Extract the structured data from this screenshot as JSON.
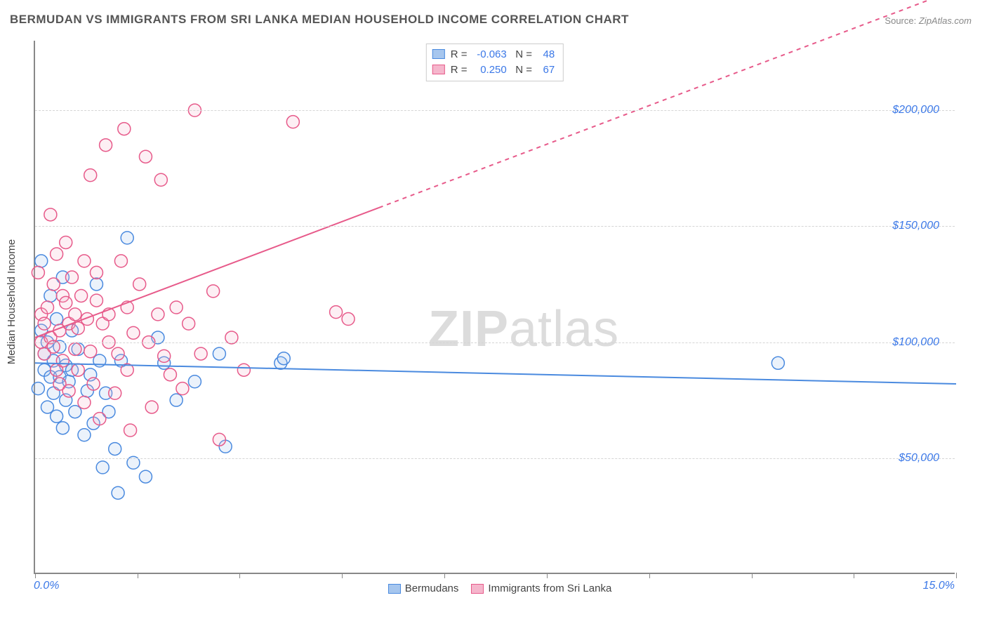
{
  "title": "BERMUDAN VS IMMIGRANTS FROM SRI LANKA MEDIAN HOUSEHOLD INCOME CORRELATION CHART",
  "source_label": "Source:",
  "source_value": "ZipAtlas.com",
  "y_axis_label": "Median Household Income",
  "watermark_bold": "ZIP",
  "watermark_rest": "atlas",
  "chart": {
    "type": "scatter",
    "xlim": [
      0,
      15
    ],
    "ylim": [
      0,
      230000
    ],
    "x_tick_labels": [
      "0.0%",
      "15.0%"
    ],
    "x_ticks_minor": [
      0,
      1.67,
      3.33,
      5,
      6.67,
      8.33,
      10,
      11.67,
      13.33,
      15
    ],
    "y_ticks": [
      {
        "value": 50000,
        "label": "$50,000"
      },
      {
        "value": 100000,
        "label": "$100,000"
      },
      {
        "value": 150000,
        "label": "$150,000"
      },
      {
        "value": 200000,
        "label": "$200,000"
      }
    ],
    "grid_color": "#d5d5d5",
    "background": "#ffffff",
    "axis_label_color": "#3b78e7",
    "marker_radius": 9,
    "marker_stroke_width": 1.5,
    "marker_fill_opacity": 0.22,
    "trendline_width": 2,
    "series": [
      {
        "name": "Bermudans",
        "color_stroke": "#4a8adf",
        "color_fill": "#a6c6ee",
        "trend": {
          "x0": 0,
          "y0": 91000,
          "x1": 15,
          "y1": 82000,
          "dash_from_x": null
        },
        "stats": {
          "R": "-0.063",
          "N": "48"
        },
        "points": [
          [
            0.05,
            80000
          ],
          [
            0.1,
            105000
          ],
          [
            0.1,
            135000
          ],
          [
            0.15,
            95000
          ],
          [
            0.15,
            88000
          ],
          [
            0.2,
            72000
          ],
          [
            0.2,
            100000
          ],
          [
            0.25,
            120000
          ],
          [
            0.25,
            85000
          ],
          [
            0.3,
            92000
          ],
          [
            0.3,
            78000
          ],
          [
            0.35,
            68000
          ],
          [
            0.35,
            110000
          ],
          [
            0.4,
            85000
          ],
          [
            0.4,
            98000
          ],
          [
            0.45,
            63000
          ],
          [
            0.45,
            128000
          ],
          [
            0.5,
            90000
          ],
          [
            0.5,
            75000
          ],
          [
            0.55,
            83000
          ],
          [
            0.6,
            105000
          ],
          [
            0.6,
            88000
          ],
          [
            0.65,
            70000
          ],
          [
            0.7,
            97000
          ],
          [
            0.8,
            60000
          ],
          [
            0.85,
            79000
          ],
          [
            0.9,
            86000
          ],
          [
            0.95,
            65000
          ],
          [
            1.0,
            125000
          ],
          [
            1.05,
            92000
          ],
          [
            1.1,
            46000
          ],
          [
            1.15,
            78000
          ],
          [
            1.2,
            70000
          ],
          [
            1.3,
            54000
          ],
          [
            1.35,
            35000
          ],
          [
            1.4,
            92000
          ],
          [
            1.5,
            145000
          ],
          [
            1.6,
            48000
          ],
          [
            1.8,
            42000
          ],
          [
            2.0,
            102000
          ],
          [
            2.1,
            91000
          ],
          [
            2.3,
            75000
          ],
          [
            2.6,
            83000
          ],
          [
            3.0,
            95000
          ],
          [
            3.1,
            55000
          ],
          [
            4.0,
            91000
          ],
          [
            4.05,
            93000
          ],
          [
            12.1,
            91000
          ]
        ]
      },
      {
        "name": "Immigrants from Sri Lanka",
        "color_stroke": "#e75a8a",
        "color_fill": "#f5b6cc",
        "trend": {
          "x0": 0,
          "y0": 102000,
          "x1": 15,
          "y1": 252000,
          "dash_from_x": 5.6
        },
        "stats": {
          "R": "0.250",
          "N": "67"
        },
        "points": [
          [
            0.05,
            130000
          ],
          [
            0.1,
            100000
          ],
          [
            0.1,
            112000
          ],
          [
            0.15,
            95000
          ],
          [
            0.15,
            108000
          ],
          [
            0.2,
            115000
          ],
          [
            0.25,
            155000
          ],
          [
            0.25,
            102000
          ],
          [
            0.3,
            125000
          ],
          [
            0.3,
            98000
          ],
          [
            0.35,
            88000
          ],
          [
            0.35,
            138000
          ],
          [
            0.4,
            82000
          ],
          [
            0.4,
            105000
          ],
          [
            0.45,
            120000
          ],
          [
            0.45,
            92000
          ],
          [
            0.5,
            117000
          ],
          [
            0.5,
            143000
          ],
          [
            0.55,
            108000
          ],
          [
            0.55,
            79000
          ],
          [
            0.6,
            128000
          ],
          [
            0.65,
            97000
          ],
          [
            0.65,
            112000
          ],
          [
            0.7,
            106000
          ],
          [
            0.7,
            88000
          ],
          [
            0.75,
            120000
          ],
          [
            0.8,
            135000
          ],
          [
            0.8,
            74000
          ],
          [
            0.85,
            110000
          ],
          [
            0.9,
            96000
          ],
          [
            0.9,
            172000
          ],
          [
            0.95,
            82000
          ],
          [
            1.0,
            118000
          ],
          [
            1.0,
            130000
          ],
          [
            1.05,
            67000
          ],
          [
            1.1,
            108000
          ],
          [
            1.15,
            185000
          ],
          [
            1.2,
            100000
          ],
          [
            1.2,
            112000
          ],
          [
            1.3,
            78000
          ],
          [
            1.35,
            95000
          ],
          [
            1.4,
            135000
          ],
          [
            1.45,
            192000
          ],
          [
            1.5,
            88000
          ],
          [
            1.5,
            115000
          ],
          [
            1.55,
            62000
          ],
          [
            1.6,
            104000
          ],
          [
            1.7,
            125000
          ],
          [
            1.8,
            180000
          ],
          [
            1.85,
            100000
          ],
          [
            1.9,
            72000
          ],
          [
            2.0,
            112000
          ],
          [
            2.1,
            94000
          ],
          [
            2.2,
            86000
          ],
          [
            2.3,
            115000
          ],
          [
            2.4,
            80000
          ],
          [
            2.5,
            108000
          ],
          [
            2.6,
            200000
          ],
          [
            2.7,
            95000
          ],
          [
            2.9,
            122000
          ],
          [
            3.0,
            58000
          ],
          [
            3.2,
            102000
          ],
          [
            3.4,
            88000
          ],
          [
            4.2,
            195000
          ],
          [
            4.9,
            113000
          ],
          [
            5.1,
            110000
          ],
          [
            2.05,
            170000
          ]
        ]
      }
    ],
    "legend": {
      "items": [
        {
          "label": "Bermudans"
        },
        {
          "label": "Immigrants from Sri Lanka"
        }
      ]
    },
    "stats_labels": {
      "R": "R =",
      "N": "N ="
    }
  }
}
